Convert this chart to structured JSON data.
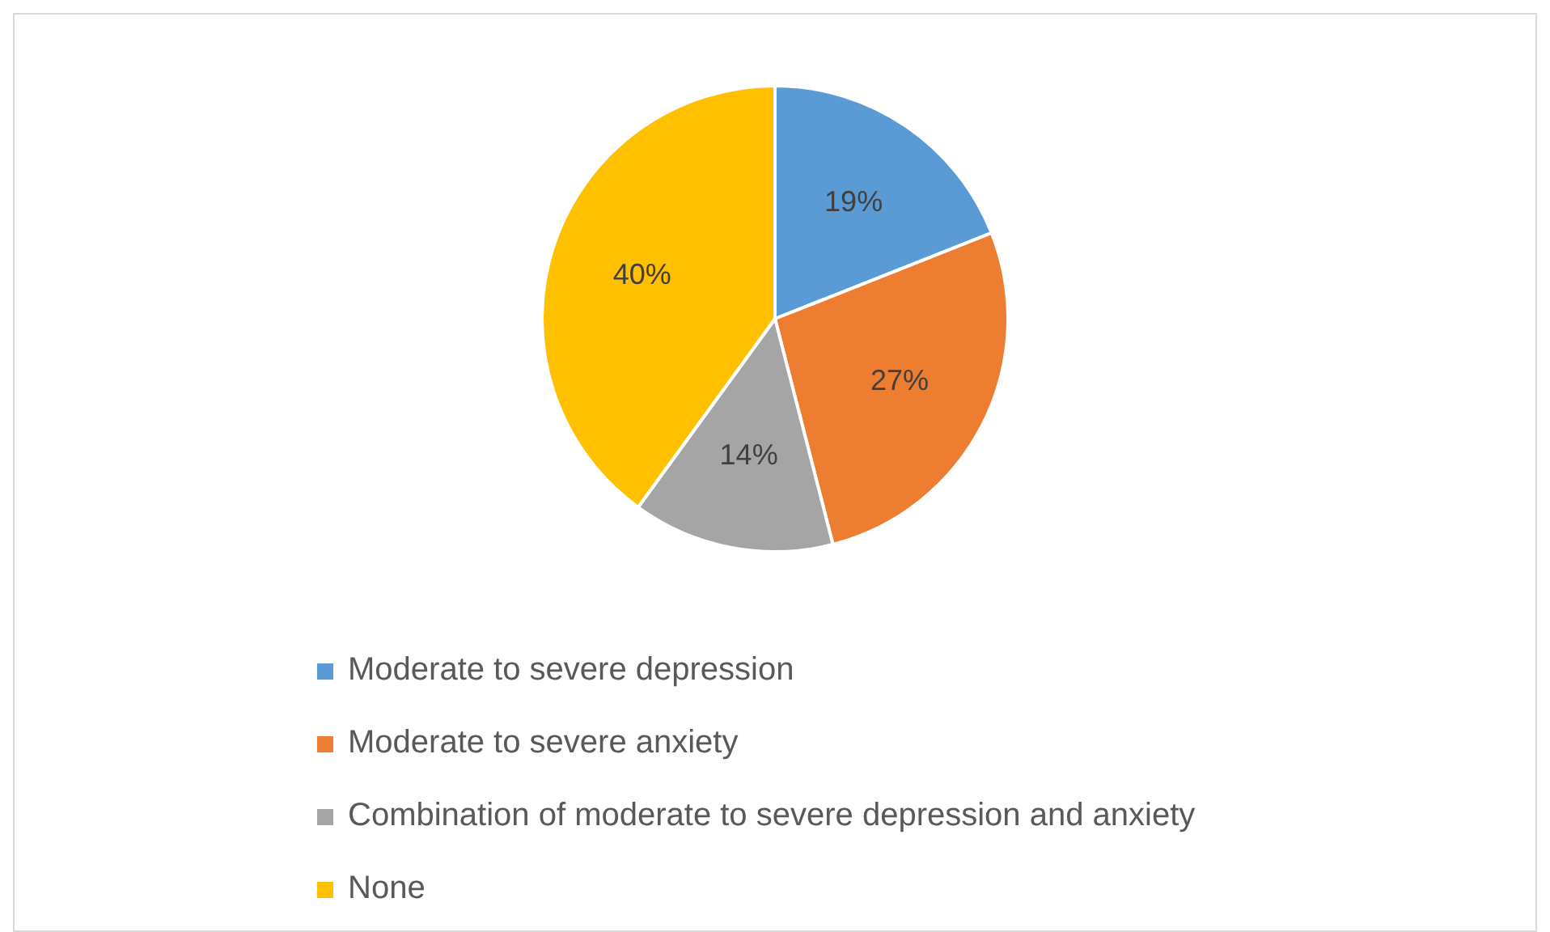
{
  "chart_data": {
    "type": "pie",
    "categories": [
      "Moderate to severe depression",
      "Moderate to severe anxiety",
      "Combination of moderate to severe depression and anxiety",
      "None"
    ],
    "values": [
      19,
      27,
      14,
      40
    ],
    "colors": [
      "#5b9bd5",
      "#ed7d31",
      "#a5a5a5",
      "#ffc000"
    ],
    "value_labels": [
      "19%",
      "27%",
      "14%",
      "40%"
    ],
    "legend": "bottom"
  }
}
